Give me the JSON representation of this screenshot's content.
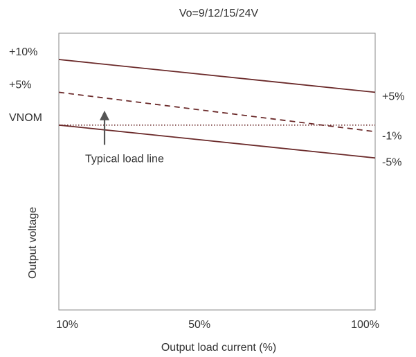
{
  "chart_data": {
    "type": "line",
    "title": "Vo=9/12/15/24V",
    "xlabel": "Output load current (%)",
    "ylabel": "Output voltage",
    "x_tick_labels": [
      "10%",
      "50%",
      "100%"
    ],
    "x_ticks": [
      10,
      50,
      100
    ],
    "xlim": [
      10,
      100
    ],
    "y_tick_labels_left": [
      "+10%",
      "+5%",
      "VNOM"
    ],
    "y_ticks_left": [
      10,
      5,
      0
    ],
    "y_tick_labels_right": [
      "+5%",
      "-1%",
      "-5%"
    ],
    "y_ticks_right": [
      5,
      -1,
      -5
    ],
    "ylim": [
      -21,
      10
    ],
    "grid": false,
    "series": [
      {
        "style": "solid",
        "color": "#6b2a2a",
        "x": [
          10,
          100
        ],
        "y": [
          10,
          5
        ]
      },
      {
        "style": "dashed",
        "color": "#6b2a2a",
        "x": [
          10,
          100
        ],
        "y": [
          5,
          -1
        ]
      },
      {
        "style": "solid",
        "color": "#6b2a2a",
        "x": [
          10,
          100
        ],
        "y": [
          0,
          -5
        ]
      },
      {
        "style": "dotted",
        "color": "#6b2a2a",
        "x": [
          10,
          100
        ],
        "y": [
          0,
          0
        ]
      }
    ],
    "annotations": [
      {
        "text": "Typical load line",
        "arrow_x": 23,
        "arrow_from_y": -3,
        "arrow_to_y": 2
      }
    ],
    "arrow_color": "#555555"
  }
}
